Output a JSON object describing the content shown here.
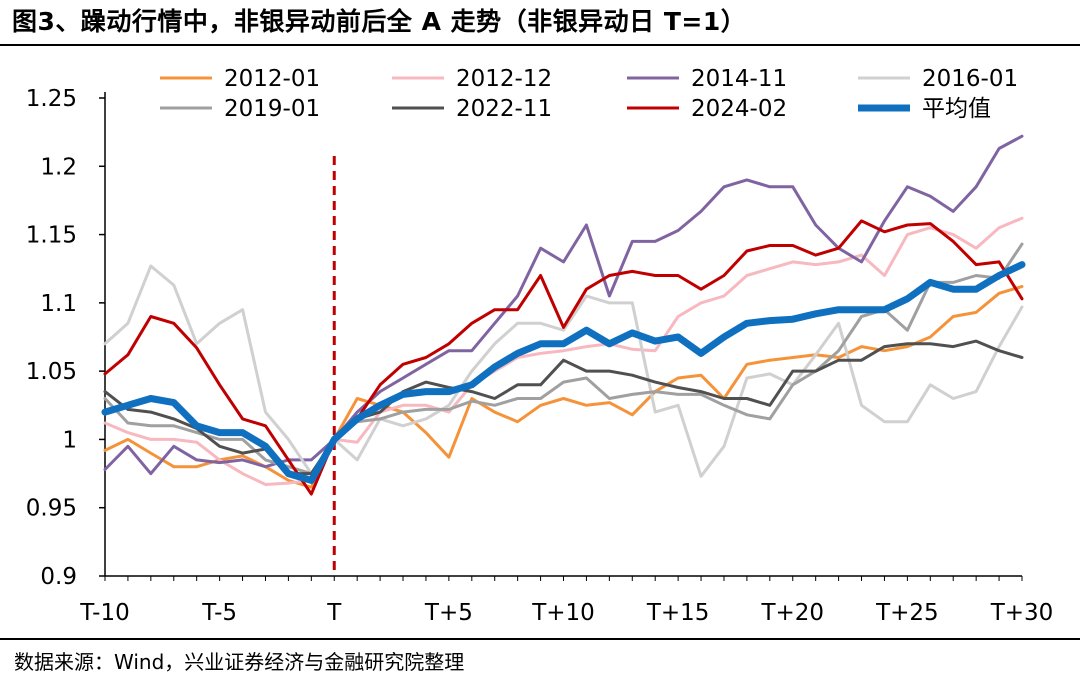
{
  "title": "图3、躁动行情中，非银异动前后全 A 走势（非银异动日 T=1）",
  "source": "数据来源：Wind，兴业证券经济与金融研究院整理",
  "chart_data": {
    "type": "line",
    "x": [
      "T-10",
      "T-9",
      "T-8",
      "T-7",
      "T-6",
      "T-5",
      "T-4",
      "T-3",
      "T-2",
      "T-1",
      "T",
      "T+1",
      "T+2",
      "T+3",
      "T+4",
      "T+5",
      "T+6",
      "T+7",
      "T+8",
      "T+9",
      "T+10",
      "T+11",
      "T+12",
      "T+13",
      "T+14",
      "T+15",
      "T+16",
      "T+17",
      "T+18",
      "T+19",
      "T+20",
      "T+21",
      "T+22",
      "T+23",
      "T+24",
      "T+25",
      "T+26",
      "T+27",
      "T+28",
      "T+29",
      "T+30"
    ],
    "xtick_labels": [
      "T-10",
      "T-5",
      "T",
      "T+5",
      "T+10",
      "T+15",
      "T+20",
      "T+25",
      "T+30"
    ],
    "ytick_labels": [
      "0.9",
      "0.95",
      "1",
      "1.05",
      "1.1",
      "1.15",
      "1.2",
      "1.25"
    ],
    "yticks": [
      0.9,
      0.95,
      1.0,
      1.05,
      1.1,
      1.15,
      1.2,
      1.25
    ],
    "ylim": [
      0.9,
      1.25
    ],
    "event_line_x": "T",
    "legend_position": "top",
    "series": [
      {
        "name": "2012-01",
        "color": "#F5933A",
        "width": 3,
        "values": [
          0.992,
          1.0,
          0.99,
          0.98,
          0.98,
          0.985,
          0.988,
          0.98,
          0.97,
          0.965,
          1.0,
          1.03,
          1.025,
          1.02,
          1.005,
          0.987,
          1.03,
          1.02,
          1.013,
          1.025,
          1.03,
          1.025,
          1.027,
          1.018,
          1.035,
          1.045,
          1.047,
          1.03,
          1.055,
          1.058,
          1.06,
          1.062,
          1.06,
          1.068,
          1.065,
          1.068,
          1.075,
          1.09,
          1.093,
          1.107,
          1.112
        ]
      },
      {
        "name": "2012-12",
        "color": "#F7B9BF",
        "width": 3,
        "values": [
          1.012,
          1.005,
          1.0,
          1.0,
          0.998,
          0.985,
          0.975,
          0.967,
          0.968,
          0.97,
          1.0,
          0.998,
          1.02,
          1.025,
          1.025,
          1.02,
          1.04,
          1.05,
          1.06,
          1.063,
          1.065,
          1.068,
          1.07,
          1.066,
          1.065,
          1.09,
          1.1,
          1.105,
          1.12,
          1.125,
          1.13,
          1.128,
          1.13,
          1.135,
          1.12,
          1.15,
          1.155,
          1.15,
          1.14,
          1.155,
          1.162
        ]
      },
      {
        "name": "2014-11",
        "color": "#8064A2",
        "width": 3,
        "values": [
          0.978,
          0.995,
          0.975,
          0.995,
          0.985,
          0.983,
          0.985,
          0.98,
          0.985,
          0.985,
          1.0,
          1.02,
          1.035,
          1.045,
          1.055,
          1.065,
          1.065,
          1.085,
          1.105,
          1.14,
          1.13,
          1.157,
          1.105,
          1.145,
          1.145,
          1.153,
          1.167,
          1.185,
          1.19,
          1.185,
          1.185,
          1.157,
          1.14,
          1.13,
          1.16,
          1.185,
          1.178,
          1.167,
          1.185,
          1.213,
          1.222
        ]
      },
      {
        "name": "2016-01",
        "color": "#D0D0D0",
        "width": 3,
        "values": [
          1.07,
          1.085,
          1.127,
          1.113,
          1.07,
          1.085,
          1.095,
          1.02,
          1.0,
          0.975,
          1.0,
          0.985,
          1.015,
          1.01,
          1.015,
          1.025,
          1.05,
          1.07,
          1.085,
          1.085,
          1.08,
          1.105,
          1.1,
          1.1,
          1.02,
          1.025,
          0.973,
          0.995,
          1.045,
          1.048,
          1.04,
          1.062,
          1.085,
          1.025,
          1.013,
          1.013,
          1.04,
          1.03,
          1.035,
          1.068,
          1.097
        ]
      },
      {
        "name": "2019-01",
        "color": "#A0A0A0",
        "width": 3,
        "values": [
          1.03,
          1.012,
          1.01,
          1.01,
          1.005,
          1.0,
          1.0,
          0.985,
          0.98,
          0.975,
          1.0,
          1.013,
          1.015,
          1.02,
          1.022,
          1.022,
          1.028,
          1.025,
          1.03,
          1.03,
          1.042,
          1.045,
          1.03,
          1.033,
          1.035,
          1.033,
          1.033,
          1.025,
          1.018,
          1.015,
          1.04,
          1.05,
          1.065,
          1.09,
          1.095,
          1.08,
          1.115,
          1.115,
          1.12,
          1.118,
          1.143
        ]
      },
      {
        "name": "2022-11",
        "color": "#505050",
        "width": 3,
        "values": [
          1.035,
          1.022,
          1.02,
          1.015,
          1.008,
          0.995,
          0.99,
          0.993,
          0.975,
          0.975,
          1.0,
          1.015,
          1.02,
          1.035,
          1.042,
          1.038,
          1.035,
          1.03,
          1.04,
          1.04,
          1.058,
          1.05,
          1.05,
          1.047,
          1.042,
          1.038,
          1.035,
          1.03,
          1.03,
          1.025,
          1.05,
          1.05,
          1.058,
          1.058,
          1.068,
          1.07,
          1.07,
          1.068,
          1.072,
          1.065,
          1.06
        ]
      },
      {
        "name": "2024-02",
        "color": "#C00000",
        "width": 3,
        "values": [
          1.048,
          1.062,
          1.09,
          1.085,
          1.067,
          1.04,
          1.015,
          1.01,
          0.985,
          0.96,
          1.0,
          1.015,
          1.04,
          1.055,
          1.06,
          1.07,
          1.085,
          1.095,
          1.095,
          1.12,
          1.082,
          1.11,
          1.12,
          1.123,
          1.12,
          1.12,
          1.11,
          1.12,
          1.138,
          1.142,
          1.142,
          1.135,
          1.14,
          1.16,
          1.152,
          1.157,
          1.158,
          1.145,
          1.128,
          1.13,
          1.103
        ]
      },
      {
        "name": "平均值",
        "color": "#1070C0",
        "width": 7,
        "values": [
          1.02,
          1.025,
          1.03,
          1.027,
          1.01,
          1.005,
          1.005,
          0.995,
          0.975,
          0.97,
          1.0,
          1.015,
          1.025,
          1.033,
          1.035,
          1.035,
          1.04,
          1.053,
          1.063,
          1.07,
          1.07,
          1.08,
          1.07,
          1.078,
          1.072,
          1.075,
          1.063,
          1.075,
          1.085,
          1.087,
          1.088,
          1.092,
          1.095,
          1.095,
          1.095,
          1.103,
          1.115,
          1.11,
          1.11,
          1.12,
          1.128
        ]
      }
    ]
  }
}
